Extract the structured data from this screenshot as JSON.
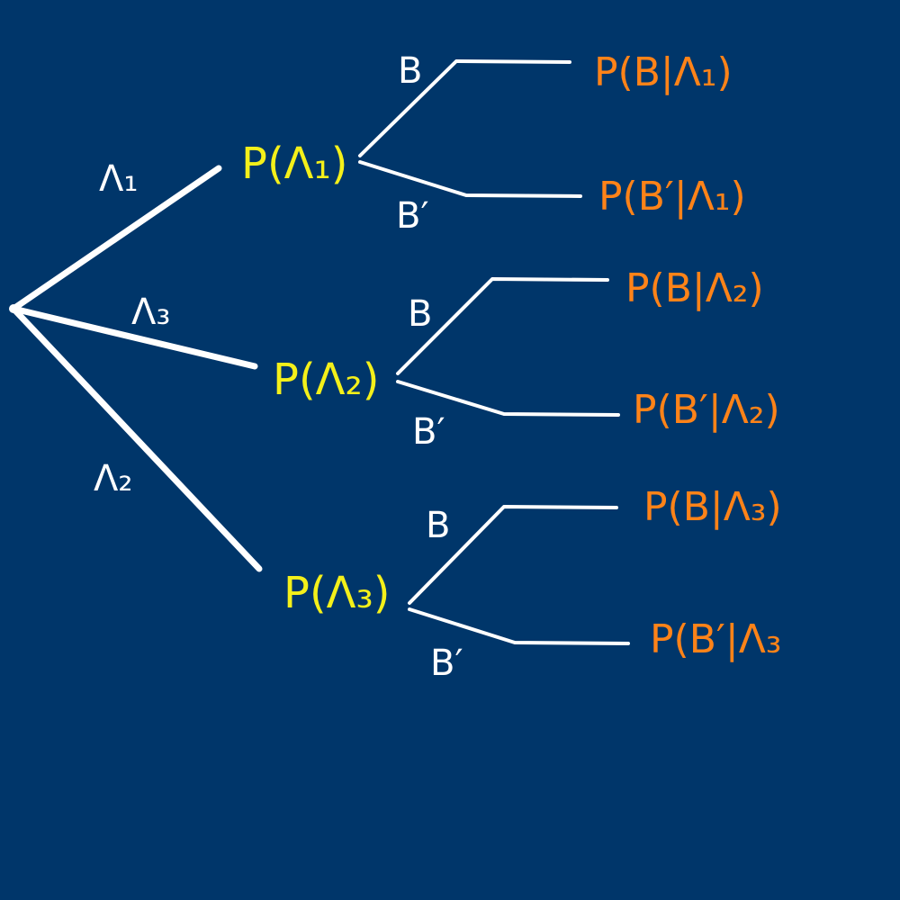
{
  "colors": {
    "background": "#00366a",
    "line": "#ffffff",
    "first_level_prob": "#f4f01a",
    "conditional_prob": "#ff8318",
    "branch_label": "#ffffff"
  },
  "first_branches": {
    "top_label": "Λ₁",
    "middle_label": "Λ₃",
    "bottom_label": "Λ₂"
  },
  "nodes": {
    "n1": "P(Λ₁)",
    "n2": "P(Λ₂)",
    "n3": "P(Λ₃)"
  },
  "second_branches": {
    "b1_up": "B",
    "b1_down": "B′",
    "b2_up": "B",
    "b2_down": "B′",
    "b3_up": "B",
    "b3_down": "B′"
  },
  "leaves": {
    "l1": "P(B|Λ₁)",
    "l2": "P(B′|Λ₁)",
    "l3": "P(B|Λ₂)",
    "l4": "P(B′|Λ₂)",
    "l5": "P(B|Λ₃)",
    "l6": "P(B′|Λ₃"
  }
}
